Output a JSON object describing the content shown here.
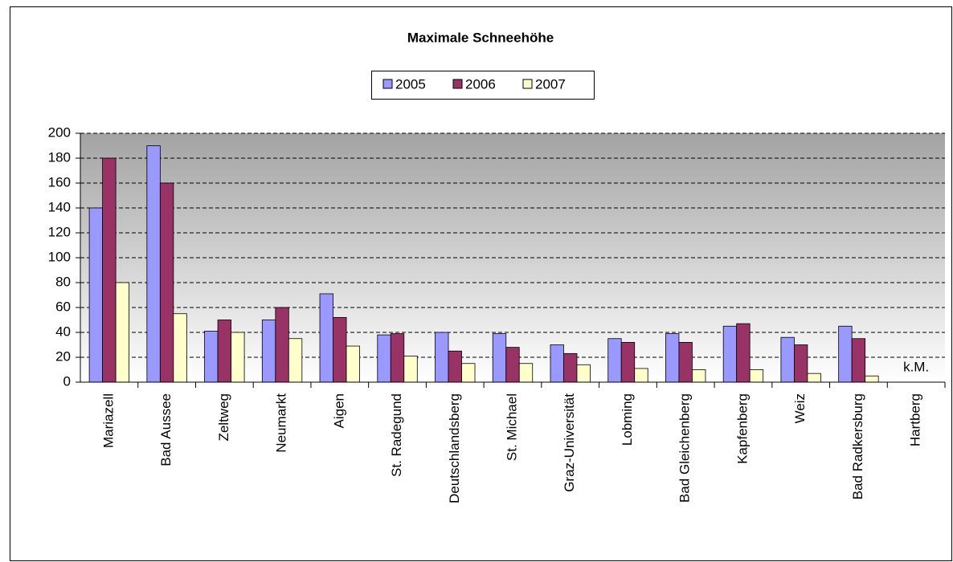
{
  "chart_data": {
    "type": "bar",
    "title": "Maximale Schneehöhe",
    "categories": [
      "Mariazell",
      "Bad Aussee",
      "Zeltweg",
      "Neumarkt",
      "Aigen",
      "St. Radegund",
      "Deutschlandsberg",
      "St. Michael",
      "Graz-Universität",
      "Lobming",
      "Bad Gleichenberg",
      "Kapfenberg",
      "Weiz",
      "Bad Radkersburg",
      "Hartberg"
    ],
    "series": [
      {
        "name": "2005",
        "color": "#9999ff",
        "values": [
          140,
          190,
          41,
          50,
          71,
          38,
          40,
          39,
          30,
          35,
          39,
          45,
          36,
          45,
          null
        ]
      },
      {
        "name": "2006",
        "color": "#993366",
        "values": [
          180,
          160,
          50,
          60,
          52,
          39,
          25,
          28,
          23,
          32,
          32,
          47,
          30,
          35,
          null
        ]
      },
      {
        "name": "2007",
        "color": "#ffffcc",
        "values": [
          80,
          55,
          40,
          35,
          29,
          21,
          15,
          15,
          14,
          11,
          10,
          10,
          7,
          5,
          null
        ]
      }
    ],
    "annotation": "k.M.",
    "ylim": [
      0,
      200
    ],
    "yticks": [
      0,
      20,
      40,
      60,
      80,
      100,
      120,
      140,
      160,
      180,
      200
    ],
    "grid": true,
    "legend": "top"
  }
}
